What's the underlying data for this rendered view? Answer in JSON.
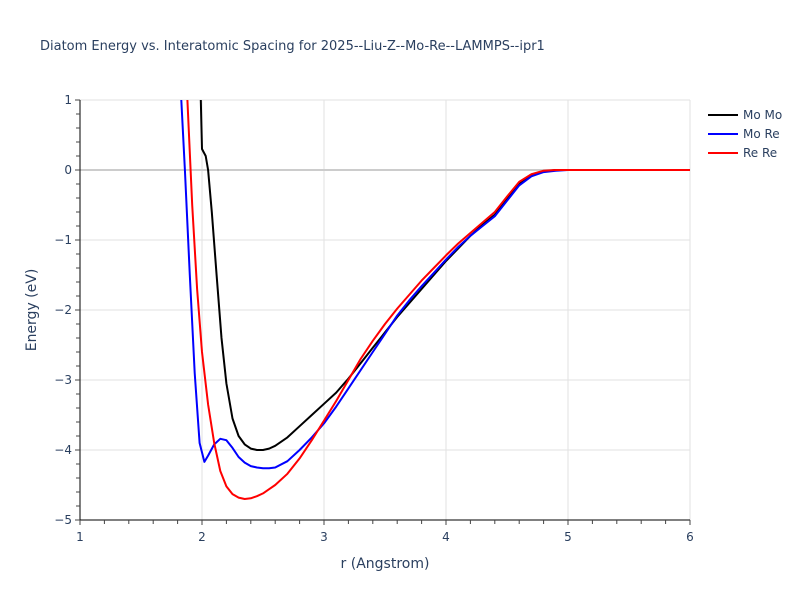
{
  "chart_data": {
    "type": "line",
    "title": "Diatom Energy vs. Interatomic Spacing for 2025--Liu-Z--Mo-Re--LAMMPS--ipr1",
    "xlabel": "r (Angstrom)",
    "ylabel": "Energy (eV)",
    "xlim": [
      1,
      6
    ],
    "ylim": [
      -5,
      1
    ],
    "x_ticks": [
      1,
      2,
      3,
      4,
      5,
      6
    ],
    "y_ticks": [
      1,
      0,
      -1,
      -2,
      -3,
      -4,
      -5
    ],
    "y_tick_labels": [
      "1",
      "0",
      "−1",
      "−2",
      "−3",
      "−4",
      "−5"
    ],
    "grid": true,
    "legend_position": "top-right-outside",
    "series": [
      {
        "name": "Mo Mo",
        "color": "#000000",
        "x": [
          1.99,
          2.0,
          2.03,
          2.05,
          2.08,
          2.12,
          2.16,
          2.2,
          2.25,
          2.3,
          2.35,
          2.4,
          2.45,
          2.5,
          2.55,
          2.6,
          2.7,
          2.8,
          2.9,
          3.0,
          3.1,
          3.2,
          3.3,
          3.4,
          3.5,
          3.6,
          3.7,
          3.8,
          3.9,
          4.0,
          4.1,
          4.2,
          4.3,
          4.4,
          4.5,
          4.6,
          4.7,
          4.8,
          4.9,
          5.0,
          5.2,
          5.5,
          6.0
        ],
        "y": [
          1.0,
          0.3,
          0.2,
          0.0,
          -0.6,
          -1.5,
          -2.4,
          -3.05,
          -3.55,
          -3.8,
          -3.92,
          -3.98,
          -4.0,
          -4.0,
          -3.98,
          -3.94,
          -3.82,
          -3.66,
          -3.5,
          -3.34,
          -3.18,
          -2.98,
          -2.76,
          -2.54,
          -2.32,
          -2.1,
          -1.9,
          -1.7,
          -1.5,
          -1.3,
          -1.12,
          -0.94,
          -0.78,
          -0.64,
          -0.42,
          -0.2,
          -0.08,
          -0.02,
          0.0,
          0.0,
          0.0,
          0.0,
          0.0
        ]
      },
      {
        "name": "Mo Re",
        "color": "#0000ff",
        "x": [
          1.83,
          1.86,
          1.9,
          1.94,
          1.98,
          2.02,
          2.05,
          2.1,
          2.15,
          2.2,
          2.25,
          2.3,
          2.35,
          2.4,
          2.45,
          2.5,
          2.55,
          2.6,
          2.7,
          2.8,
          2.9,
          3.0,
          3.1,
          3.2,
          3.3,
          3.4,
          3.5,
          3.6,
          3.7,
          3.8,
          3.9,
          4.0,
          4.1,
          4.2,
          4.3,
          4.4,
          4.5,
          4.6,
          4.7,
          4.8,
          4.9,
          5.0,
          5.2,
          5.5,
          6.0
        ],
        "y": [
          1.0,
          0.0,
          -1.5,
          -2.9,
          -3.9,
          -4.17,
          -4.08,
          -3.92,
          -3.84,
          -3.86,
          -3.97,
          -4.1,
          -4.18,
          -4.23,
          -4.25,
          -4.26,
          -4.26,
          -4.25,
          -4.16,
          -4.0,
          -3.82,
          -3.62,
          -3.38,
          -3.12,
          -2.86,
          -2.6,
          -2.34,
          -2.08,
          -1.86,
          -1.66,
          -1.47,
          -1.28,
          -1.1,
          -0.94,
          -0.8,
          -0.66,
          -0.44,
          -0.22,
          -0.09,
          -0.03,
          -0.01,
          0.0,
          0.0,
          0.0,
          0.0
        ]
      },
      {
        "name": "Re Re",
        "color": "#ff0000",
        "x": [
          1.88,
          1.92,
          1.96,
          2.0,
          2.05,
          2.1,
          2.15,
          2.2,
          2.25,
          2.3,
          2.35,
          2.4,
          2.45,
          2.5,
          2.55,
          2.6,
          2.7,
          2.8,
          2.9,
          3.0,
          3.1,
          3.2,
          3.3,
          3.4,
          3.5,
          3.6,
          3.7,
          3.8,
          3.9,
          4.0,
          4.1,
          4.2,
          4.3,
          4.4,
          4.5,
          4.6,
          4.7,
          4.8,
          4.9,
          5.0,
          5.2,
          5.5,
          6.0
        ],
        "y": [
          1.0,
          -0.5,
          -1.7,
          -2.6,
          -3.35,
          -3.9,
          -4.3,
          -4.52,
          -4.63,
          -4.68,
          -4.7,
          -4.69,
          -4.66,
          -4.62,
          -4.56,
          -4.5,
          -4.34,
          -4.12,
          -3.86,
          -3.58,
          -3.3,
          -3.0,
          -2.7,
          -2.44,
          -2.2,
          -1.98,
          -1.78,
          -1.58,
          -1.4,
          -1.22,
          -1.05,
          -0.9,
          -0.75,
          -0.6,
          -0.38,
          -0.17,
          -0.06,
          -0.01,
          0.0,
          0.0,
          0.0,
          0.0,
          0.0
        ]
      }
    ]
  },
  "legend": {
    "items": [
      {
        "label": "Mo Mo",
        "color": "#000000"
      },
      {
        "label": "Mo Re",
        "color": "#0000ff"
      },
      {
        "label": "Re Re",
        "color": "#ff0000"
      }
    ]
  }
}
